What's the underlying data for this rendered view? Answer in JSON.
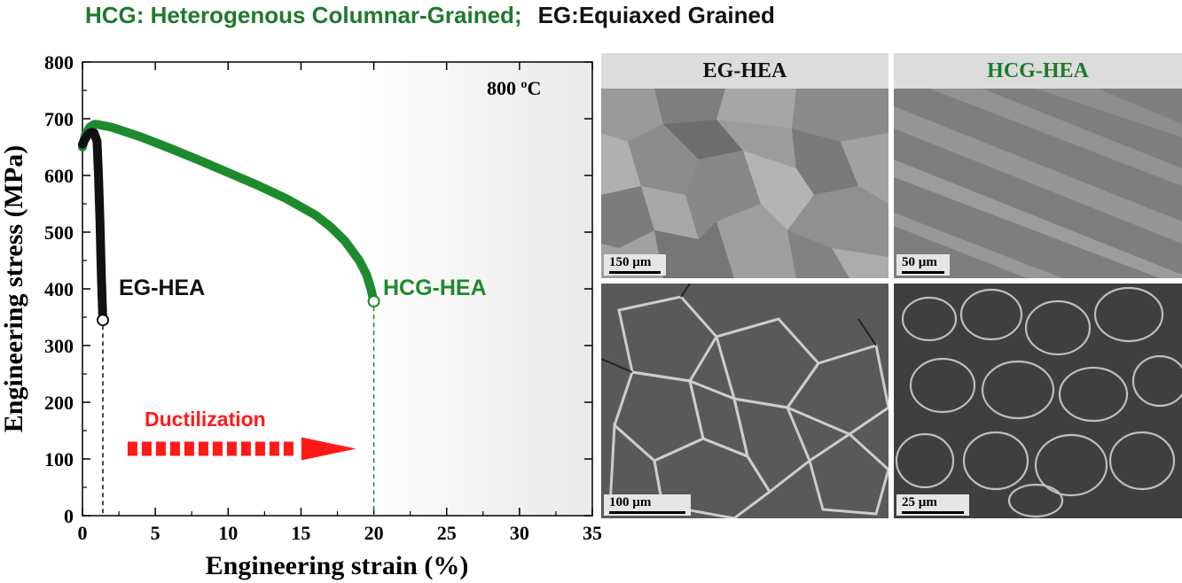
{
  "header": {
    "hcg_def": "HCG: Heterogenous Columnar-Grained;",
    "eg_def": "EG:Equiaxed Grained"
  },
  "chart_data": {
    "type": "line",
    "xlabel": "Engineering strain (%)",
    "ylabel": "Engineering stress (MPa)",
    "xlim": [
      0,
      35
    ],
    "ylim": [
      0,
      800
    ],
    "xticks": [
      0,
      5,
      10,
      15,
      20,
      25,
      30,
      35
    ],
    "yticks": [
      0,
      100,
      200,
      300,
      400,
      500,
      600,
      700,
      800
    ],
    "temperature": "800 °C",
    "series": [
      {
        "name": "EG-HEA",
        "color": "#111111",
        "x": [
          0,
          0.2,
          0.4,
          0.6,
          0.8,
          1.0,
          1.1,
          1.2,
          1.3,
          1.4
        ],
        "y": [
          655,
          665,
          673,
          676,
          675,
          660,
          600,
          520,
          420,
          345
        ],
        "fracture": [
          1.4,
          345
        ]
      },
      {
        "name": "HCG-HEA",
        "color": "#1e8a2e",
        "x": [
          0,
          0.2,
          0.5,
          0.8,
          1,
          2,
          4,
          6,
          8,
          10,
          12,
          14,
          16,
          17,
          18,
          19,
          19.5,
          19.8,
          20
        ],
        "y": [
          650,
          672,
          685,
          690,
          690,
          685,
          668,
          648,
          627,
          605,
          583,
          559,
          530,
          510,
          485,
          450,
          425,
          400,
          378
        ],
        "fracture": [
          20,
          378
        ]
      }
    ],
    "annotation": {
      "text": "Ductilization",
      "color": "#ff1a1a",
      "x_start": 3.1,
      "x_end": 18.8,
      "y": 118
    }
  },
  "micrographs": {
    "columns": [
      "EG-HEA",
      "HCG-HEA"
    ],
    "scales": {
      "eg_top": "150 µm",
      "hcg_top": "50 µm",
      "eg_bottom": "100 µm",
      "hcg_bottom": "25 µm"
    }
  }
}
